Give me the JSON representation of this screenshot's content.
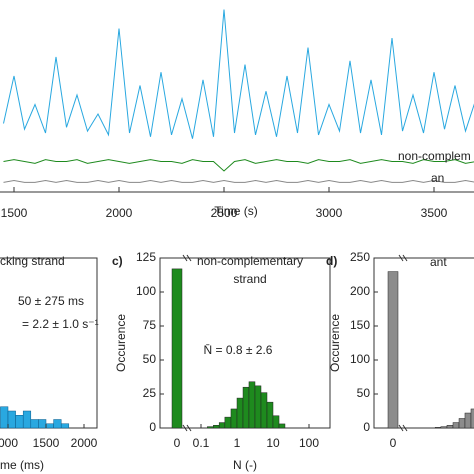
{
  "chart_data": [
    {
      "type": "line",
      "xlabel": "Time (s)",
      "xticks": [
        1500,
        2000,
        2500,
        3000,
        3500
      ],
      "xlim": [
        1433,
        3690
      ],
      "ylim": [
        0,
        100
      ],
      "x": [
        1450,
        1500,
        1550,
        1600,
        1650,
        1700,
        1750,
        1800,
        1850,
        1900,
        1950,
        2000,
        2050,
        2100,
        2150,
        2200,
        2250,
        2300,
        2350,
        2400,
        2450,
        2500,
        2550,
        2600,
        2650,
        2700,
        2750,
        2800,
        2850,
        2900,
        2950,
        3000,
        3050,
        3100,
        3150,
        3200,
        3250,
        3300,
        3350,
        3400,
        3450,
        3500,
        3550,
        3600,
        3650,
        3700
      ],
      "series": [
        {
          "name": null,
          "color": "#29a8e0",
          "values": [
            35,
            60,
            32,
            45,
            30,
            70,
            33,
            50,
            31,
            40,
            29,
            85,
            30,
            55,
            28,
            62,
            29,
            48,
            27,
            58,
            28,
            95,
            30,
            66,
            29,
            52,
            28,
            60,
            30,
            75,
            29,
            45,
            31,
            68,
            30,
            58,
            29,
            80,
            31,
            50,
            30,
            62,
            32,
            55,
            31,
            48
          ]
        },
        {
          "name": "non-complem",
          "color": "#1e8a1e",
          "values": [
            15,
            16,
            15,
            14,
            16,
            15,
            15,
            16,
            14,
            15,
            16,
            15,
            14,
            15,
            16,
            15,
            15,
            14,
            16,
            15,
            15,
            10,
            15,
            16,
            14,
            15,
            16,
            15,
            15,
            14,
            16,
            15,
            15,
            16,
            14,
            15,
            16,
            15,
            15,
            14,
            16,
            15,
            15,
            16,
            14,
            15
          ]
        },
        {
          "name": "an",
          "color": "#888888",
          "values": [
            4,
            5,
            4,
            4,
            5,
            4,
            5,
            4,
            4,
            5,
            4,
            5,
            4,
            4,
            5,
            4,
            5,
            4,
            4,
            5,
            4,
            5,
            4,
            4,
            5,
            4,
            5,
            4,
            4,
            5,
            4,
            5,
            4,
            4,
            5,
            4,
            5,
            4,
            4,
            5,
            4,
            5,
            4,
            4,
            5,
            4
          ]
        }
      ]
    },
    {
      "type": "histogram",
      "panel": null,
      "texts": [
        "cking strand",
        "50 ± 275 ms",
        "= 2.2 ± 1.0 s⁻¹"
      ],
      "xlabel": "me (ms)",
      "xticks": [
        {
          "value": 1000,
          "label": "000"
        },
        1500,
        2000
      ],
      "ylim": [
        0,
        40
      ],
      "color": "#29a8e0",
      "bins": [
        900,
        1000,
        1100,
        1200,
        1300,
        1400,
        1500,
        1600,
        1700,
        1800
      ],
      "counts": [
        5,
        4,
        3,
        4,
        2,
        2,
        1,
        2,
        1
      ]
    },
    {
      "type": "histogram",
      "panel": "c)",
      "texts": [
        "non-complementary",
        "strand",
        "N̄ = 0.8 ± 2.6"
      ],
      "xlabel": "N (-)",
      "ylabel": "Occurence",
      "xticks": [
        0,
        0.1,
        1,
        10,
        100
      ],
      "ylim": [
        0,
        125
      ],
      "yticks": [
        0,
        25,
        50,
        75,
        100,
        125
      ],
      "color": "#1e8a1e",
      "zero_count": 117,
      "bins": [
        0.15,
        0.22,
        0.32,
        0.46,
        0.68,
        1,
        1.47,
        2.15,
        3.16,
        4.64,
        6.81,
        10,
        14.7,
        21.5
      ],
      "counts": [
        1,
        2,
        4,
        8,
        14,
        22,
        30,
        34,
        31,
        26,
        19,
        9,
        3
      ]
    },
    {
      "type": "histogram",
      "panel": "d)",
      "texts": [
        "ant"
      ],
      "ylabel": "Occurence",
      "xticks": [
        0
      ],
      "ylim": [
        0,
        250
      ],
      "yticks": [
        0,
        50,
        100,
        150,
        200,
        250
      ],
      "color": "#8c8c8c",
      "zero_count": 230,
      "bins": [
        0.15,
        0.22,
        0.32,
        0.46,
        0.68,
        1,
        1.47,
        2.15,
        3.16,
        4.64,
        6.81,
        10,
        14.7,
        21.5
      ],
      "counts": [
        0,
        0,
        1,
        2,
        4,
        8,
        14,
        22,
        28,
        30,
        25,
        18,
        9
      ]
    }
  ]
}
